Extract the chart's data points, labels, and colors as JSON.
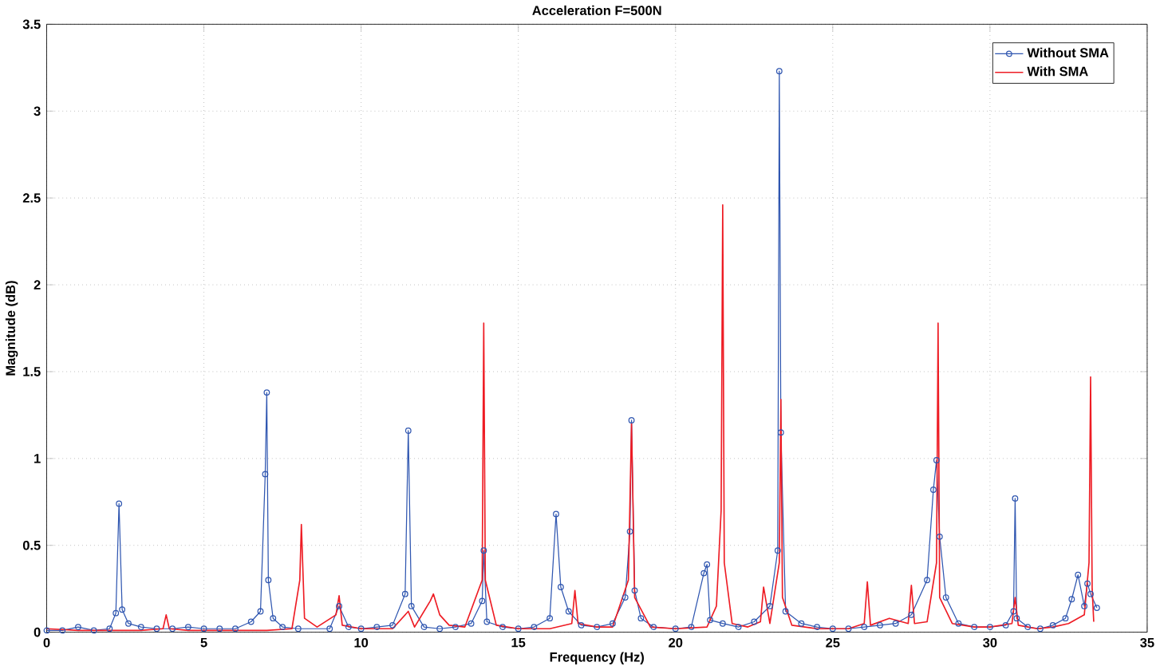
{
  "chart_data": {
    "type": "line",
    "title": "Acceleration F=500N",
    "xlabel": "Frequency (Hz)",
    "ylabel": "Magnitude (dB)",
    "xlim": [
      0,
      35
    ],
    "ylim": [
      0,
      3.5
    ],
    "xticks": [
      0,
      5,
      10,
      15,
      20,
      25,
      30,
      35
    ],
    "yticks": [
      0,
      0.5,
      1,
      1.5,
      2,
      2.5,
      3,
      3.5
    ],
    "grid": true,
    "legend": "top right",
    "line_style": "solid",
    "series": [
      {
        "name": "Without SMA",
        "color": "#2f56b0",
        "marker": "circle",
        "x": [
          0,
          0.5,
          1.0,
          1.5,
          2.0,
          2.2,
          2.3,
          2.4,
          2.6,
          3.0,
          3.5,
          4.0,
          4.5,
          5.0,
          5.5,
          6.0,
          6.5,
          6.8,
          6.95,
          7.0,
          7.05,
          7.2,
          7.5,
          8.0,
          9.0,
          9.3,
          9.6,
          10.0,
          10.5,
          11.0,
          11.4,
          11.5,
          11.6,
          12.0,
          12.5,
          13.0,
          13.5,
          13.85,
          13.9,
          14.0,
          14.5,
          15.0,
          15.5,
          16.0,
          16.2,
          16.35,
          16.6,
          17.0,
          17.5,
          18.0,
          18.4,
          18.55,
          18.6,
          18.7,
          18.9,
          19.3,
          20.0,
          20.5,
          20.9,
          21.0,
          21.1,
          21.5,
          22.0,
          22.5,
          23.0,
          23.25,
          23.3,
          23.35,
          23.5,
          24.0,
          24.5,
          25.0,
          25.5,
          26.0,
          26.5,
          27.0,
          27.5,
          28.0,
          28.2,
          28.3,
          28.4,
          28.6,
          29.0,
          29.5,
          30.0,
          30.5,
          30.75,
          30.8,
          30.85,
          31.2,
          31.6,
          32.0,
          32.4,
          32.6,
          32.8,
          33.0,
          33.1,
          33.2,
          33.4
        ],
        "values": [
          0.01,
          0.01,
          0.03,
          0.01,
          0.02,
          0.11,
          0.74,
          0.13,
          0.05,
          0.03,
          0.02,
          0.02,
          0.03,
          0.02,
          0.02,
          0.02,
          0.06,
          0.12,
          0.91,
          1.38,
          0.3,
          0.08,
          0.03,
          0.02,
          0.02,
          0.15,
          0.03,
          0.02,
          0.03,
          0.04,
          0.22,
          1.16,
          0.15,
          0.03,
          0.02,
          0.03,
          0.05,
          0.18,
          0.47,
          0.06,
          0.03,
          0.02,
          0.03,
          0.08,
          0.68,
          0.26,
          0.12,
          0.04,
          0.03,
          0.05,
          0.2,
          0.58,
          1.22,
          0.24,
          0.08,
          0.03,
          0.02,
          0.03,
          0.34,
          0.39,
          0.07,
          0.05,
          0.03,
          0.06,
          0.15,
          0.47,
          3.23,
          1.15,
          0.12,
          0.05,
          0.03,
          0.02,
          0.02,
          0.03,
          0.04,
          0.05,
          0.1,
          0.3,
          0.82,
          0.99,
          0.55,
          0.2,
          0.05,
          0.03,
          0.03,
          0.04,
          0.12,
          0.77,
          0.08,
          0.03,
          0.02,
          0.04,
          0.08,
          0.19,
          0.33,
          0.15,
          0.28,
          0.22,
          0.14
        ]
      },
      {
        "name": "With SMA",
        "color": "#ee1c24",
        "marker": "none",
        "x": [
          0,
          1.0,
          2.0,
          3.0,
          3.7,
          3.8,
          3.9,
          4.5,
          5.0,
          6.0,
          7.0,
          7.8,
          8.05,
          8.1,
          8.2,
          8.6,
          9.2,
          9.3,
          9.4,
          10.0,
          11.0,
          11.5,
          11.7,
          12.2,
          12.3,
          12.5,
          12.8,
          13.3,
          13.85,
          13.9,
          13.95,
          14.3,
          15.0,
          16.0,
          16.7,
          16.8,
          16.9,
          17.5,
          18.0,
          18.5,
          18.6,
          18.7,
          19.2,
          20.0,
          21.0,
          21.3,
          21.45,
          21.5,
          21.55,
          21.8,
          22.3,
          22.7,
          22.8,
          23.0,
          23.3,
          23.35,
          23.4,
          23.7,
          24.5,
          25.5,
          26.0,
          26.1,
          26.2,
          26.8,
          27.4,
          27.5,
          27.6,
          28.0,
          28.3,
          28.35,
          28.4,
          28.8,
          29.5,
          30.0,
          30.7,
          30.8,
          30.9,
          31.5,
          32.0,
          32.5,
          33.0,
          33.15,
          33.2,
          33.25,
          33.3
        ],
        "values": [
          0.02,
          0.01,
          0.01,
          0.01,
          0.02,
          0.1,
          0.02,
          0.01,
          0.01,
          0.01,
          0.01,
          0.02,
          0.3,
          0.62,
          0.08,
          0.03,
          0.1,
          0.21,
          0.04,
          0.02,
          0.02,
          0.12,
          0.03,
          0.18,
          0.22,
          0.1,
          0.04,
          0.03,
          0.3,
          1.78,
          0.3,
          0.04,
          0.02,
          0.02,
          0.05,
          0.24,
          0.05,
          0.03,
          0.03,
          0.3,
          1.2,
          0.2,
          0.03,
          0.02,
          0.03,
          0.15,
          0.7,
          2.46,
          0.4,
          0.05,
          0.03,
          0.06,
          0.26,
          0.05,
          0.4,
          1.34,
          0.2,
          0.04,
          0.02,
          0.02,
          0.05,
          0.29,
          0.04,
          0.08,
          0.05,
          0.27,
          0.05,
          0.06,
          0.4,
          1.78,
          0.2,
          0.05,
          0.03,
          0.03,
          0.05,
          0.2,
          0.04,
          0.02,
          0.03,
          0.05,
          0.1,
          0.4,
          1.47,
          0.25,
          0.06
        ]
      }
    ]
  }
}
